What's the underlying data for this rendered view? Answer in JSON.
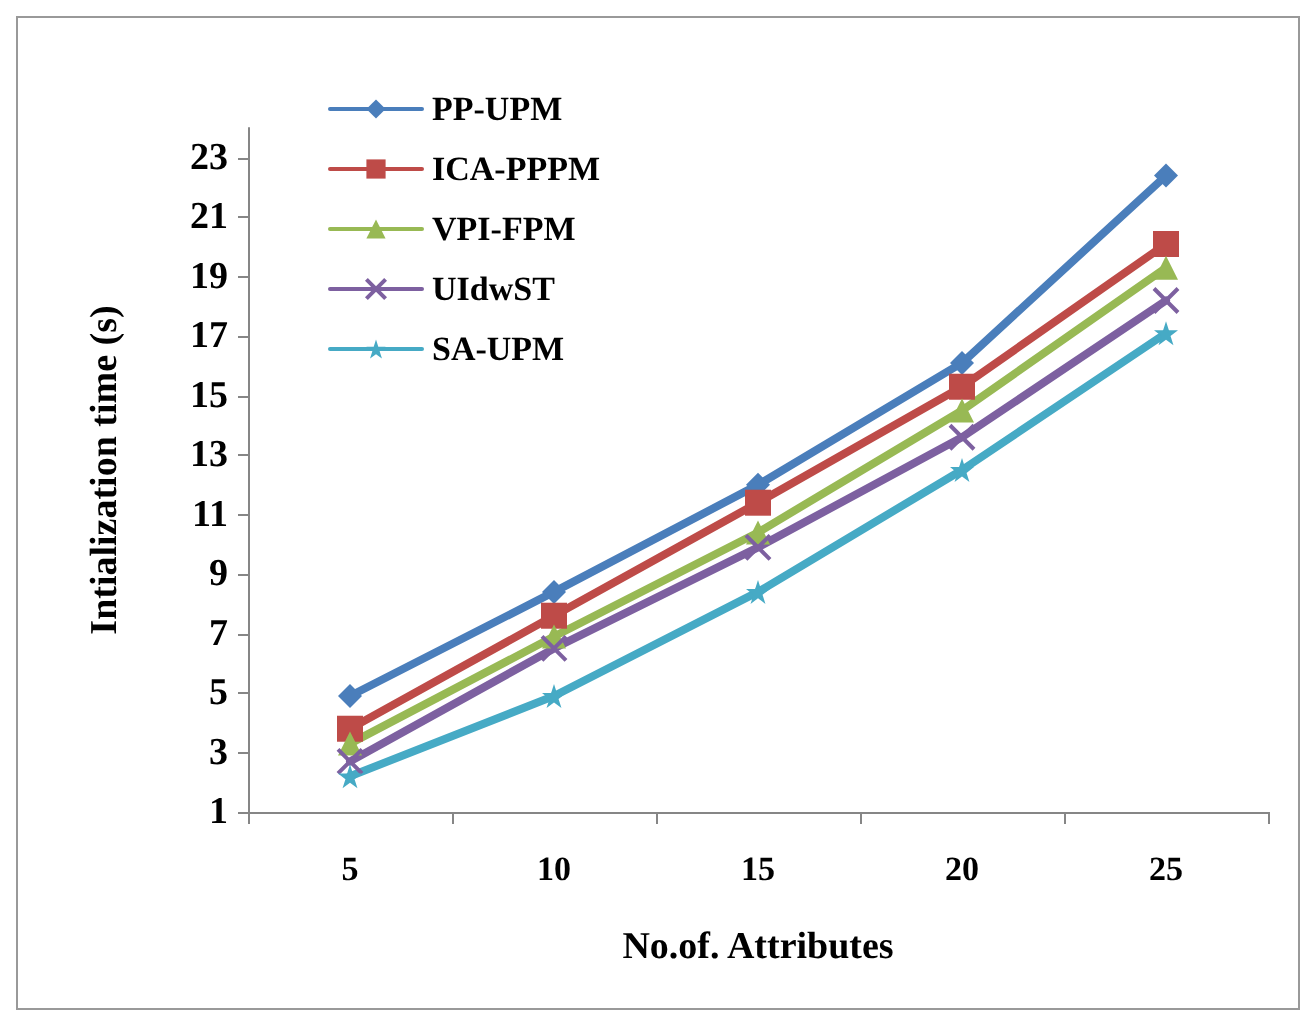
{
  "chart_data": {
    "type": "line",
    "xlabel": "No.of. Attributes",
    "ylabel": "Intialization time (s)",
    "categories": [
      "5",
      "10",
      "15",
      "20",
      "25"
    ],
    "series": [
      {
        "name": "PP-UPM",
        "color": "#4a7ebb",
        "marker": "diamond",
        "values": [
          4.9,
          8.4,
          12.0,
          16.1,
          22.4
        ]
      },
      {
        "name": "ICA-PPPM",
        "color": "#be4b48",
        "marker": "square",
        "values": [
          3.8,
          7.6,
          11.4,
          15.3,
          20.1
        ]
      },
      {
        "name": "VPI-FPM",
        "color": "#98b954",
        "marker": "triangle",
        "values": [
          3.3,
          6.9,
          10.4,
          14.5,
          19.3
        ]
      },
      {
        "name": "UIdwST",
        "color": "#7d60a0",
        "marker": "cross",
        "values": [
          2.7,
          6.5,
          9.9,
          13.6,
          18.2
        ]
      },
      {
        "name": "SA-UPM",
        "color": "#46aac5",
        "marker": "star",
        "values": [
          2.2,
          4.9,
          8.4,
          12.5,
          17.1
        ]
      }
    ],
    "ylim": [
      1,
      24
    ],
    "yticks": [
      1,
      3,
      5,
      7,
      9,
      11,
      13,
      15,
      17,
      19,
      21,
      23
    ],
    "grid": false,
    "legend": "top left",
    "line_style": "solid"
  }
}
